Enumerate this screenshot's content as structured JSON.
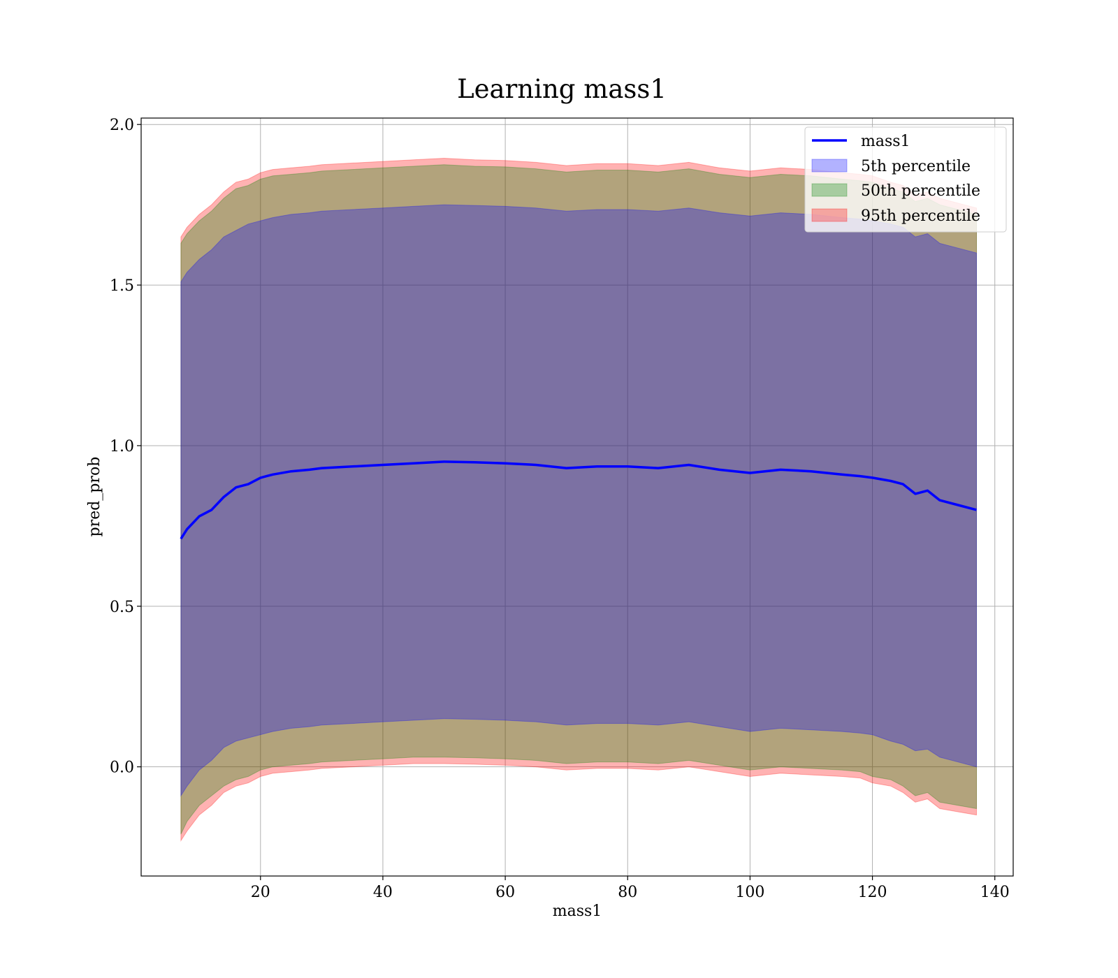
{
  "chart_data": {
    "type": "line",
    "title": "Learning mass1",
    "xlabel": "mass1",
    "ylabel": "pred_prob",
    "xlim": [
      0.5,
      143
    ],
    "ylim": [
      -0.34,
      2.02
    ],
    "xticks": [
      20,
      40,
      60,
      80,
      100,
      120,
      140
    ],
    "yticks": [
      0.0,
      0.5,
      1.0,
      1.5,
      2.0
    ],
    "ytick_labels": [
      "0.0",
      "0.5",
      "1.0",
      "1.5",
      "2.0"
    ],
    "grid": true,
    "legend": {
      "placement": "top-right",
      "entries": [
        {
          "label": "mass1",
          "kind": "line",
          "color": "#0000ff"
        },
        {
          "label": "5th percentile",
          "kind": "band",
          "color": "#0000ff"
        },
        {
          "label": "50th percentile",
          "kind": "band",
          "color": "#008000"
        },
        {
          "label": "95th percentile",
          "kind": "band",
          "color": "#ff0000"
        }
      ]
    },
    "x": [
      7,
      8,
      10,
      12,
      14,
      16,
      18,
      20,
      22,
      25,
      28,
      30,
      35,
      40,
      45,
      50,
      55,
      60,
      65,
      70,
      75,
      80,
      85,
      90,
      95,
      100,
      105,
      110,
      115,
      118,
      120,
      123,
      125,
      127,
      129,
      131,
      134,
      137
    ],
    "series": [
      {
        "name": "mass1",
        "kind": "line",
        "color": "#0000ff",
        "values": [
          0.71,
          0.74,
          0.78,
          0.8,
          0.84,
          0.87,
          0.88,
          0.9,
          0.91,
          0.92,
          0.925,
          0.93,
          0.935,
          0.94,
          0.945,
          0.95,
          0.948,
          0.945,
          0.94,
          0.93,
          0.935,
          0.935,
          0.93,
          0.94,
          0.925,
          0.915,
          0.925,
          0.92,
          0.91,
          0.905,
          0.9,
          0.89,
          0.88,
          0.85,
          0.86,
          0.83,
          0.815,
          0.8
        ]
      },
      {
        "name": "5th percentile",
        "kind": "band",
        "color": "#0000ff",
        "lower": [
          -0.09,
          -0.06,
          -0.01,
          0.02,
          0.06,
          0.08,
          0.09,
          0.1,
          0.11,
          0.12,
          0.125,
          0.13,
          0.135,
          0.14,
          0.145,
          0.15,
          0.148,
          0.145,
          0.14,
          0.13,
          0.135,
          0.135,
          0.13,
          0.14,
          0.125,
          0.11,
          0.12,
          0.115,
          0.11,
          0.105,
          0.1,
          0.08,
          0.07,
          0.05,
          0.055,
          0.03,
          0.015,
          0.0
        ],
        "upper": [
          1.51,
          1.54,
          1.58,
          1.61,
          1.65,
          1.67,
          1.69,
          1.7,
          1.71,
          1.72,
          1.725,
          1.73,
          1.735,
          1.74,
          1.745,
          1.75,
          1.748,
          1.745,
          1.74,
          1.73,
          1.735,
          1.735,
          1.73,
          1.74,
          1.725,
          1.715,
          1.725,
          1.72,
          1.71,
          1.705,
          1.7,
          1.69,
          1.68,
          1.65,
          1.66,
          1.63,
          1.615,
          1.6
        ]
      },
      {
        "name": "50th percentile",
        "kind": "band",
        "color": "#008000",
        "lower": [
          -0.21,
          -0.17,
          -0.12,
          -0.09,
          -0.06,
          -0.04,
          -0.03,
          -0.01,
          0.0,
          0.005,
          0.01,
          0.015,
          0.02,
          0.025,
          0.03,
          0.03,
          0.028,
          0.025,
          0.02,
          0.01,
          0.015,
          0.015,
          0.01,
          0.02,
          0.005,
          -0.01,
          0.0,
          -0.005,
          -0.01,
          -0.015,
          -0.03,
          -0.04,
          -0.06,
          -0.09,
          -0.08,
          -0.11,
          -0.12,
          -0.13
        ],
        "upper": [
          1.63,
          1.66,
          1.7,
          1.73,
          1.77,
          1.8,
          1.81,
          1.83,
          1.84,
          1.845,
          1.85,
          1.855,
          1.86,
          1.865,
          1.87,
          1.875,
          1.87,
          1.868,
          1.862,
          1.852,
          1.858,
          1.858,
          1.852,
          1.862,
          1.845,
          1.835,
          1.845,
          1.84,
          1.83,
          1.825,
          1.82,
          1.8,
          1.79,
          1.76,
          1.77,
          1.75,
          1.735,
          1.72
        ]
      },
      {
        "name": "95th percentile",
        "kind": "band",
        "color": "#ff0000",
        "lower": [
          -0.23,
          -0.2,
          -0.15,
          -0.12,
          -0.08,
          -0.06,
          -0.05,
          -0.03,
          -0.02,
          -0.015,
          -0.01,
          -0.005,
          0.0,
          0.005,
          0.01,
          0.01,
          0.008,
          0.005,
          0.0,
          -0.01,
          -0.005,
          -0.005,
          -0.01,
          0.0,
          -0.015,
          -0.03,
          -0.02,
          -0.025,
          -0.03,
          -0.035,
          -0.05,
          -0.06,
          -0.08,
          -0.11,
          -0.1,
          -0.13,
          -0.14,
          -0.15
        ],
        "upper": [
          1.65,
          1.68,
          1.72,
          1.75,
          1.79,
          1.82,
          1.83,
          1.85,
          1.86,
          1.865,
          1.87,
          1.875,
          1.88,
          1.885,
          1.89,
          1.895,
          1.89,
          1.888,
          1.882,
          1.872,
          1.878,
          1.878,
          1.872,
          1.882,
          1.865,
          1.855,
          1.865,
          1.86,
          1.85,
          1.845,
          1.84,
          1.82,
          1.81,
          1.78,
          1.79,
          1.77,
          1.755,
          1.74
        ]
      }
    ]
  }
}
